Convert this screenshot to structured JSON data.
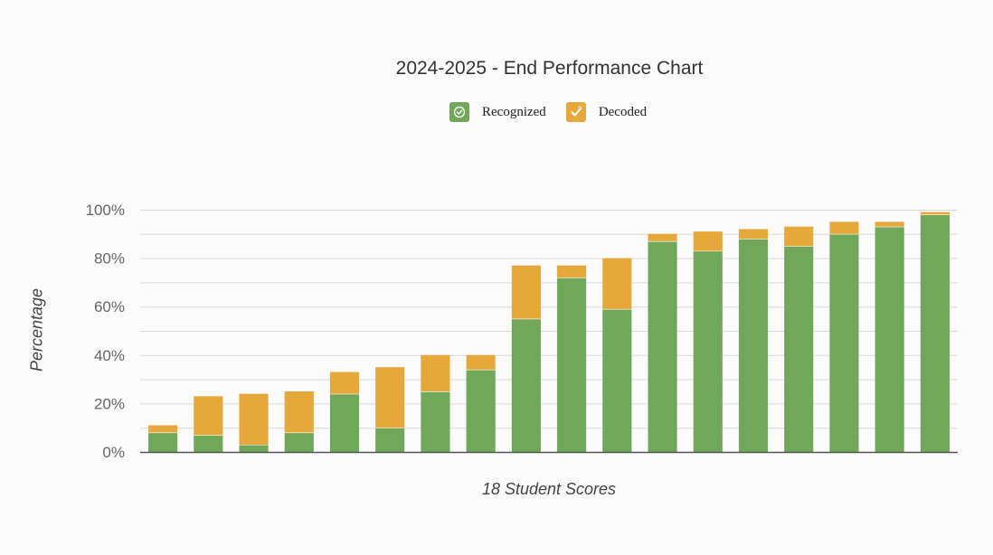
{
  "chart_data": {
    "type": "bar",
    "stacked": true,
    "title": "2024-2025 - End Performance Chart",
    "xlabel": "18 Student Scores",
    "ylabel": "Percentage",
    "ylim": [
      0,
      100
    ],
    "yticks": [
      "0%",
      "20%",
      "40%",
      "60%",
      "80%",
      "100%"
    ],
    "grid": true,
    "legend_position": "top-center",
    "series": [
      {
        "name": "Recognized",
        "color": "#70a75a",
        "values": [
          8,
          7,
          3,
          8,
          24,
          10,
          25,
          34,
          55,
          72,
          59,
          87,
          83,
          88,
          85,
          90,
          93,
          98
        ]
      },
      {
        "name": "Decoded",
        "color": "#e6a83b",
        "values": [
          3,
          16,
          21,
          17,
          9,
          25,
          15,
          6,
          22,
          5,
          21,
          3,
          8,
          4,
          8,
          5,
          2,
          1
        ]
      }
    ]
  },
  "legend": {
    "recognized_icon": "check-circle-icon",
    "decoded_icon": "checkmark-icon"
  }
}
